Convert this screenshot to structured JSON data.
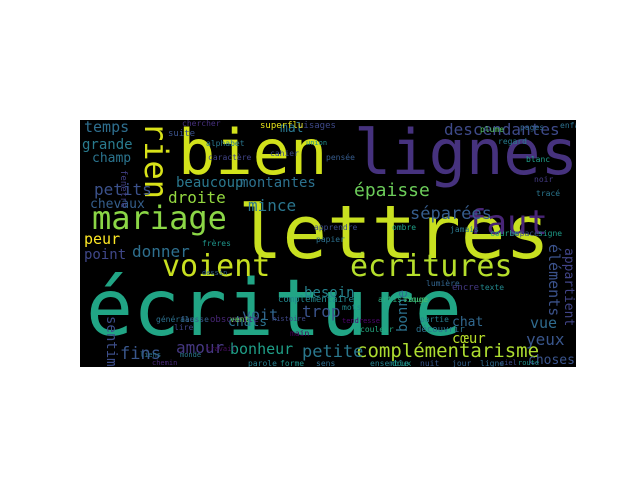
{
  "cloud": {
    "background": "#000000",
    "words": [
      {
        "text": "écriture",
        "color": "#21a585"
      },
      {
        "text": "lettres",
        "color": "#c8e020"
      },
      {
        "text": "bien",
        "color": "#d2e21b"
      },
      {
        "text": "lignes",
        "color": "#46327e"
      },
      {
        "text": "mariage",
        "color": "#8bd646"
      },
      {
        "text": "voient",
        "color": "#c8e020"
      },
      {
        "text": "écritures",
        "color": "#b5de2b"
      },
      {
        "text": "faut",
        "color": "#482576"
      },
      {
        "text": "rien",
        "color": "#d8e219"
      },
      {
        "text": "complémentarisme",
        "color": "#addc30"
      },
      {
        "text": "descendantes",
        "color": "#3e4a89"
      },
      {
        "text": "épaisse",
        "color": "#6ccd5a"
      },
      {
        "text": "séparées",
        "color": "#365d8d"
      },
      {
        "text": "temps",
        "color": "#2e6e8e"
      },
      {
        "text": "grande",
        "color": "#297b8e"
      },
      {
        "text": "champ",
        "color": "#2b748e"
      },
      {
        "text": "petits",
        "color": "#3b518b"
      },
      {
        "text": "chevaux",
        "color": "#355f8d"
      },
      {
        "text": "beaucoup",
        "color": "#2a788e"
      },
      {
        "text": "montantes",
        "color": "#2c718e"
      },
      {
        "text": "droite",
        "color": "#94d840"
      },
      {
        "text": "mince",
        "color": "#2a768e"
      },
      {
        "text": "donner",
        "color": "#2e6f8e"
      },
      {
        "text": "peur",
        "color": "#fde725"
      },
      {
        "text": "point",
        "color": "#3f4788"
      },
      {
        "text": "voit",
        "color": "#31668e"
      },
      {
        "text": "trop",
        "color": "#3a538b"
      },
      {
        "text": "besoin",
        "color": "#25838e"
      },
      {
        "text": "petite",
        "color": "#2a788e"
      },
      {
        "text": "bonheur",
        "color": "#1f9f88"
      },
      {
        "text": "amour",
        "color": "#453882"
      },
      {
        "text": "fins",
        "color": "#39568c"
      },
      {
        "text": "sentiment",
        "color": "#3d4e8a"
      },
      {
        "text": "chats",
        "color": "#2c728e"
      },
      {
        "text": "mal",
        "color": "#2a778e"
      },
      {
        "text": "yeux",
        "color": "#39568c"
      },
      {
        "text": "vue",
        "color": "#2f6b8e"
      },
      {
        "text": "chat",
        "color": "#31688e"
      },
      {
        "text": "cœur",
        "color": "#b8de29"
      },
      {
        "text": "choses",
        "color": "#3a548c"
      },
      {
        "text": "éléments",
        "color": "#3b528b"
      },
      {
        "text": "prendre",
        "color": "#33628d"
      },
      {
        "text": "appartient",
        "color": "#414487"
      },
      {
        "text": "bonne",
        "color": "#2c728e"
      },
      {
        "text": "complémentaire",
        "color": "#23888e"
      },
      {
        "text": "frères",
        "color": "#1f958b"
      },
      {
        "text": "générale",
        "color": "#2d708e"
      },
      {
        "text": "suite",
        "color": "#3b528b"
      },
      {
        "text": "lire",
        "color": "#404588"
      },
      {
        "text": "monde",
        "color": "#2a788e"
      },
      {
        "text": "partie",
        "color": "#287d8e"
      },
      {
        "text": "découvrir",
        "color": "#2c718e"
      },
      {
        "text": "chercher",
        "color": "#46307e"
      },
      {
        "text": "fenêtre",
        "color": "#424086"
      },
      {
        "text": "visages",
        "color": "#3e4989"
      },
      {
        "text": "superflu",
        "color": "#e7e419"
      },
      {
        "text": "travail",
        "color": "#471063"
      },
      {
        "text": "jamais",
        "color": "#2a788e"
      },
      {
        "text": "artistique",
        "color": "#29af7f"
      },
      {
        "text": "rouge",
        "color": "#4ac16d"
      },
      {
        "text": "dessin",
        "color": "#33638d"
      },
      {
        "text": "mots",
        "color": "#238a8d"
      },
      {
        "text": "fausse",
        "color": "#355e8d"
      },
      {
        "text": "obscurité",
        "color": "#482677"
      },
      {
        "text": "apprendre",
        "color": "#3d4d8a"
      },
      {
        "text": "papier",
        "color": "#2d708e"
      },
      {
        "text": "ombre",
        "color": "#1fa188"
      },
      {
        "text": "lumière",
        "color": "#32658e"
      },
      {
        "text": "vent",
        "color": "#6ece58"
      },
      {
        "text": "main",
        "color": "#440154"
      },
      {
        "text": "encre",
        "color": "#443983"
      },
      {
        "text": "texte",
        "color": "#23898e"
      },
      {
        "text": "histoire",
        "color": "#3f4889"
      },
      {
        "text": "parole",
        "color": "#277f8e"
      },
      {
        "text": "forme",
        "color": "#20928c"
      },
      {
        "text": "sens",
        "color": "#2e6e8e"
      },
      {
        "text": "tendresse",
        "color": "#4e046e"
      },
      {
        "text": "couleur",
        "color": "#25ab82"
      },
      {
        "text": "pages",
        "color": "#30698e"
      },
      {
        "text": "blanc",
        "color": "#1f9e89"
      },
      {
        "text": "noir",
        "color": "#443b84"
      },
      {
        "text": "tracé",
        "color": "#2a768e"
      },
      {
        "text": "courbe",
        "color": "#22a884"
      },
      {
        "text": "espace",
        "color": "#3b528b"
      },
      {
        "text": "signe",
        "color": "#1e9c89"
      },
      {
        "text": "plume",
        "color": "#56c667"
      },
      {
        "text": "regard",
        "color": "#287c8e"
      },
      {
        "text": "cahier",
        "color": "#3c4f8a"
      },
      {
        "text": "union",
        "color": "#21918c"
      },
      {
        "text": "pensée",
        "color": "#365c8d"
      },
      {
        "text": "alphabet",
        "color": "#2a778e"
      },
      {
        "text": "caractère",
        "color": "#414487"
      },
      {
        "text": "liens",
        "color": "#2c738e"
      },
      {
        "text": "chemin",
        "color": "#482878"
      },
      {
        "text": "ensemble",
        "color": "#26828e"
      },
      {
        "text": "doux",
        "color": "#1e9b8a"
      },
      {
        "text": "nuit",
        "color": "#38588c"
      },
      {
        "text": "jour",
        "color": "#34618d"
      },
      {
        "text": "ligne",
        "color": "#2f6c8e"
      },
      {
        "text": "ciel",
        "color": "#3e4c8a"
      },
      {
        "text": "route",
        "color": "#21918c"
      },
      {
        "text": "enfant",
        "color": "#2d718e"
      }
    ]
  }
}
